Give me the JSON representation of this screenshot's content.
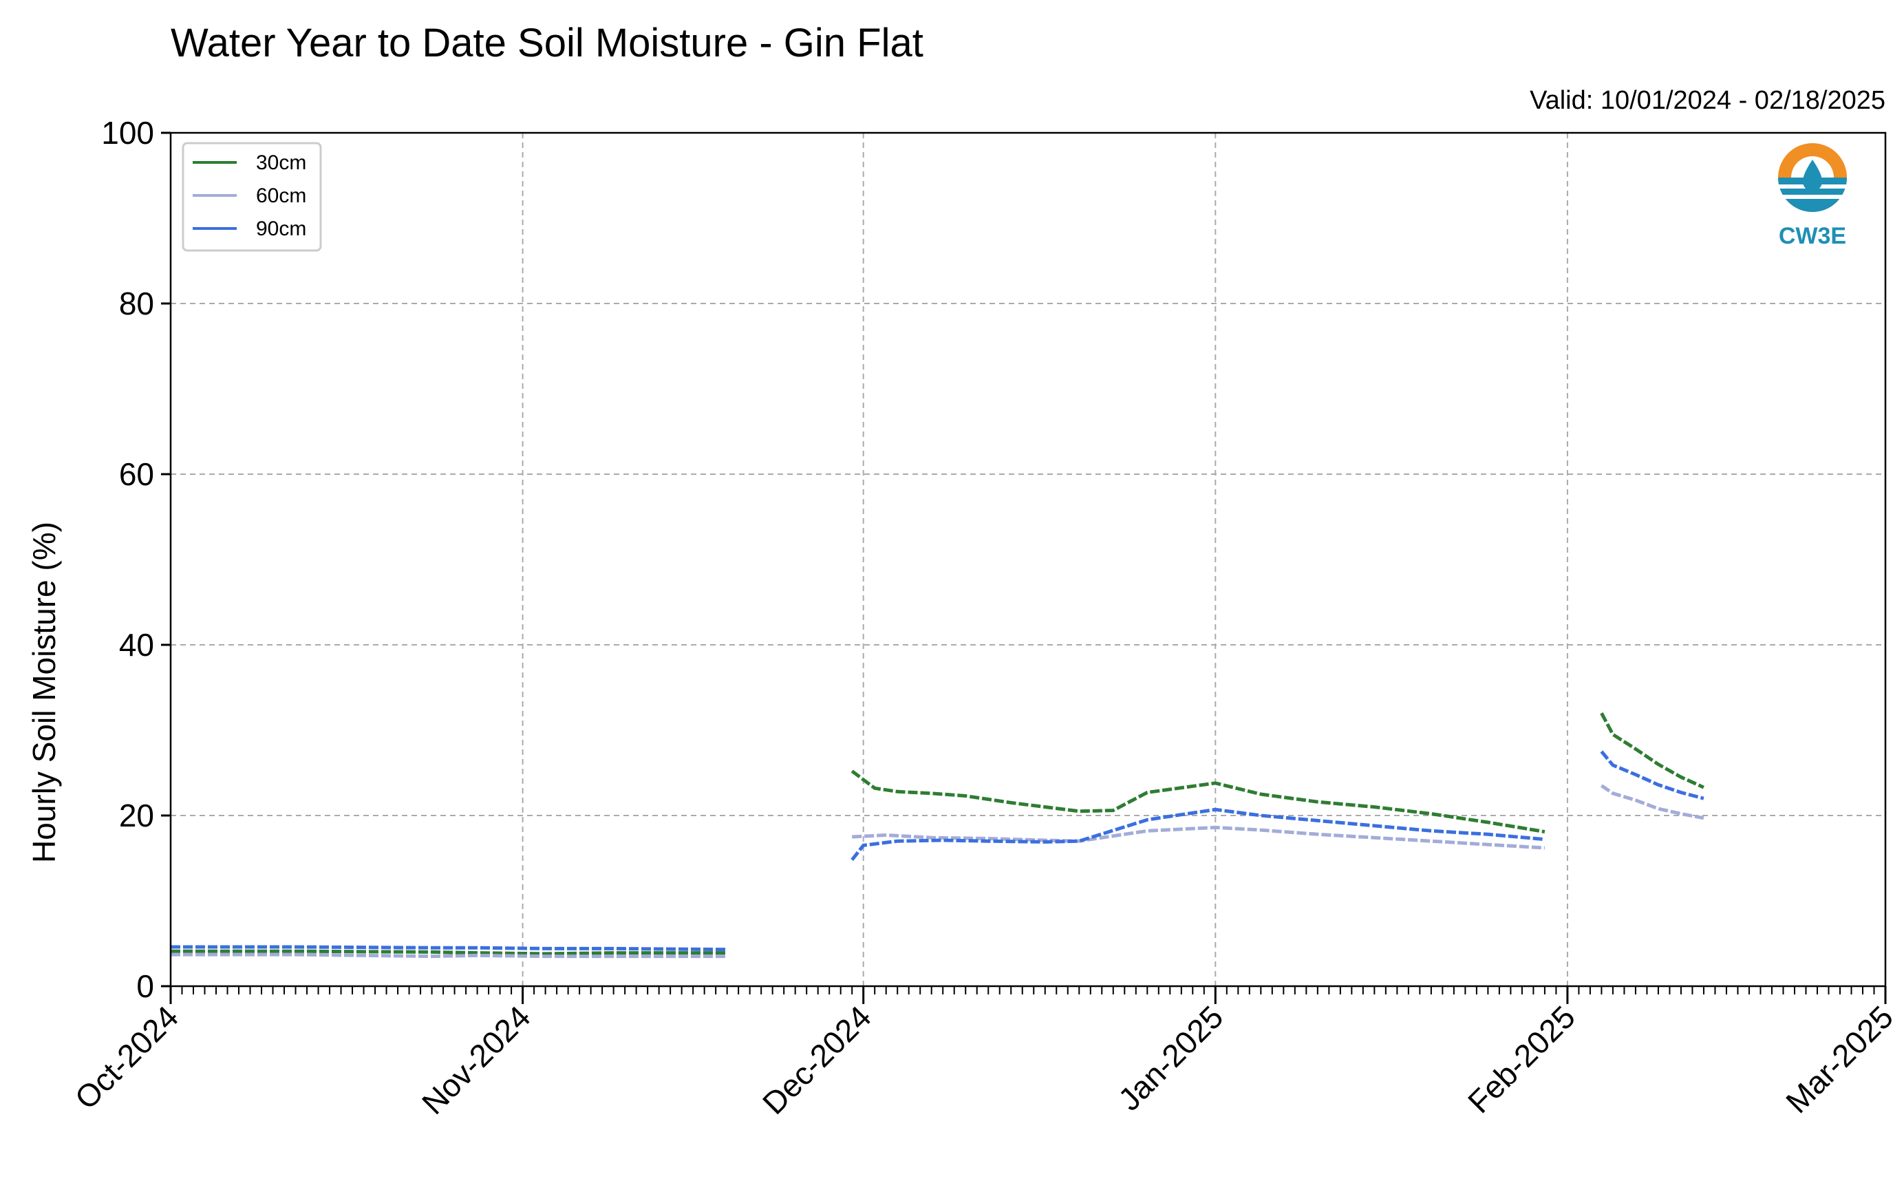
{
  "chart_data": {
    "type": "line",
    "title": "Water Year to Date Soil Moisture - Gin Flat",
    "subtitle": "Valid: 10/01/2024 - 02/18/2025",
    "xlabel": "",
    "ylabel": "Hourly Soil Moisture (%)",
    "ylim": [
      0,
      100
    ],
    "yticks": [
      0,
      20,
      40,
      60,
      80,
      100
    ],
    "xlim": [
      "2024-10-01",
      "2025-03-01"
    ],
    "xticks": [
      "2024-10-01",
      "2024-11-01",
      "2024-12-01",
      "2025-01-01",
      "2025-02-01",
      "2025-03-01"
    ],
    "xtick_labels": [
      "Oct-2024",
      "Nov-2024",
      "Dec-2024",
      "Jan-2025",
      "Feb-2025",
      "Mar-2025"
    ],
    "grid": true,
    "legend_position": "top-left",
    "logo_text": "CW3E",
    "series": [
      {
        "name": "30cm",
        "color": "#2e7d32",
        "points": [
          [
            "2024-10-01",
            4.1
          ],
          [
            "2024-10-12",
            4.1
          ],
          [
            "2024-10-24",
            4.0
          ],
          [
            "2024-10-28",
            3.9
          ],
          [
            "2024-11-03",
            3.8
          ],
          [
            "2024-11-09",
            3.9
          ],
          [
            "2024-11-19",
            3.9
          ],
          null,
          [
            "2024-11-30",
            25.2
          ],
          [
            "2024-12-02",
            23.2
          ],
          [
            "2024-12-04",
            22.8
          ],
          [
            "2024-12-07",
            22.6
          ],
          [
            "2024-12-10",
            22.3
          ],
          [
            "2024-12-14",
            21.5
          ],
          [
            "2024-12-17",
            21.0
          ],
          [
            "2024-12-20",
            20.5
          ],
          [
            "2024-12-23",
            20.6
          ],
          [
            "2024-12-26",
            22.7
          ],
          [
            "2025-01-01",
            23.8
          ],
          [
            "2025-01-05",
            22.5
          ],
          [
            "2025-01-10",
            21.6
          ],
          [
            "2025-01-15",
            21.0
          ],
          [
            "2025-01-20",
            20.2
          ],
          [
            "2025-01-25",
            19.2
          ],
          [
            "2025-01-30",
            18.1
          ],
          null,
          [
            "2025-02-04",
            32.0
          ],
          [
            "2025-02-05",
            29.5
          ],
          [
            "2025-02-07",
            27.8
          ],
          [
            "2025-02-09",
            26.0
          ],
          [
            "2025-02-11",
            24.5
          ],
          [
            "2025-02-13",
            23.3
          ]
        ]
      },
      {
        "name": "60cm",
        "color": "#a3acd8",
        "points": [
          [
            "2024-10-01",
            3.7
          ],
          [
            "2024-10-12",
            3.7
          ],
          [
            "2024-10-24",
            3.5
          ],
          [
            "2024-10-28",
            3.6
          ],
          [
            "2024-11-03",
            3.5
          ],
          [
            "2024-11-09",
            3.5
          ],
          [
            "2024-11-19",
            3.5
          ],
          null,
          [
            "2024-11-30",
            17.5
          ],
          [
            "2024-12-03",
            17.7
          ],
          [
            "2024-12-07",
            17.4
          ],
          [
            "2024-12-12",
            17.3
          ],
          [
            "2024-12-17",
            17.1
          ],
          [
            "2024-12-20",
            17.0
          ],
          [
            "2024-12-26",
            18.2
          ],
          [
            "2025-01-01",
            18.6
          ],
          [
            "2025-01-05",
            18.3
          ],
          [
            "2025-01-10",
            17.8
          ],
          [
            "2025-01-15",
            17.4
          ],
          [
            "2025-01-20",
            17.0
          ],
          [
            "2025-01-25",
            16.6
          ],
          [
            "2025-01-30",
            16.2
          ],
          null,
          [
            "2025-02-04",
            23.5
          ],
          [
            "2025-02-05",
            22.6
          ],
          [
            "2025-02-07",
            21.8
          ],
          [
            "2025-02-09",
            20.8
          ],
          [
            "2025-02-11",
            20.2
          ],
          [
            "2025-02-13",
            19.7
          ]
        ]
      },
      {
        "name": "90cm",
        "color": "#3b6fe0",
        "points": [
          [
            "2024-10-01",
            4.6
          ],
          [
            "2024-10-12",
            4.6
          ],
          [
            "2024-10-24",
            4.5
          ],
          [
            "2024-10-28",
            4.5
          ],
          [
            "2024-11-03",
            4.4
          ],
          [
            "2024-11-09",
            4.4
          ],
          [
            "2024-11-19",
            4.3
          ],
          null,
          [
            "2024-11-30",
            14.8
          ],
          [
            "2024-12-01",
            16.5
          ],
          [
            "2024-12-04",
            17.0
          ],
          [
            "2024-12-08",
            17.1
          ],
          [
            "2024-12-12",
            17.0
          ],
          [
            "2024-12-17",
            16.9
          ],
          [
            "2024-12-20",
            17.0
          ],
          [
            "2024-12-26",
            19.5
          ],
          [
            "2025-01-01",
            20.7
          ],
          [
            "2025-01-05",
            20.0
          ],
          [
            "2025-01-10",
            19.4
          ],
          [
            "2025-01-15",
            18.8
          ],
          [
            "2025-01-20",
            18.2
          ],
          [
            "2025-01-25",
            17.8
          ],
          [
            "2025-01-30",
            17.2
          ],
          null,
          [
            "2025-02-04",
            27.5
          ],
          [
            "2025-02-05",
            25.9
          ],
          [
            "2025-02-07",
            24.8
          ],
          [
            "2025-02-09",
            23.6
          ],
          [
            "2025-02-11",
            22.7
          ],
          [
            "2025-02-13",
            22.0
          ]
        ]
      }
    ]
  }
}
